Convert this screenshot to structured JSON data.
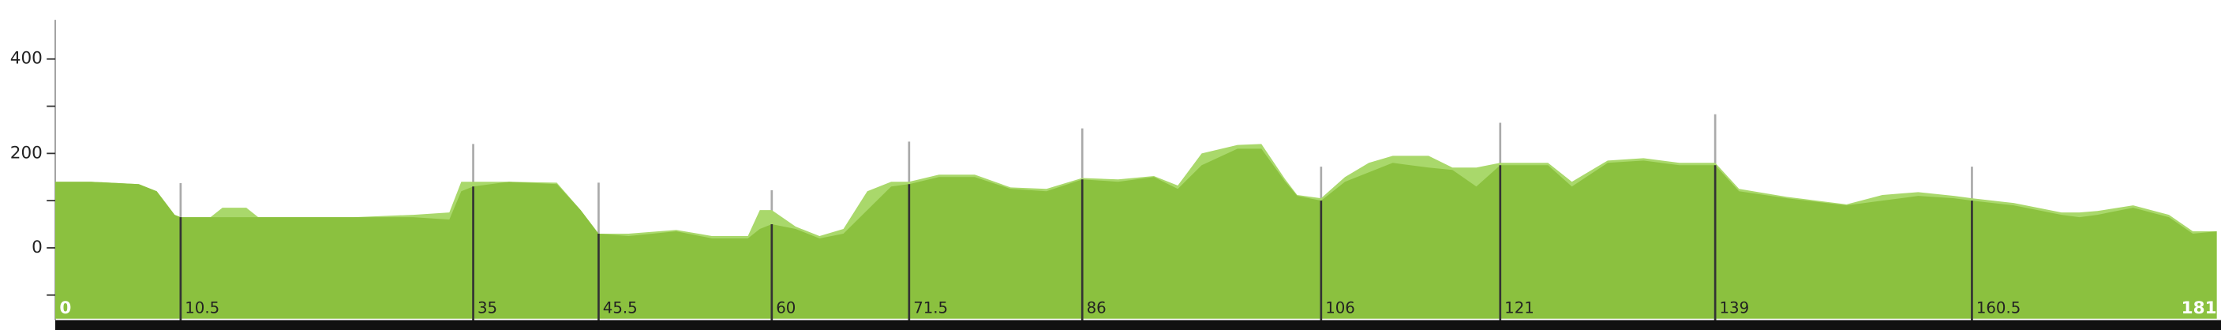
{
  "chart_data": {
    "type": "area",
    "xlim": [
      0,
      181
    ],
    "ylim": [
      -150,
      480
    ],
    "yticks": [
      0,
      200,
      400
    ],
    "yminor_ticks": [
      -100,
      100,
      300
    ],
    "x": [
      0,
      3,
      7,
      8.5,
      10,
      10.5,
      13,
      14,
      16,
      17,
      20,
      25,
      30,
      33,
      34,
      35,
      38,
      42,
      44,
      45.5,
      48,
      52,
      55,
      58,
      59,
      60,
      62,
      64,
      66,
      68,
      70,
      71.5,
      74,
      77,
      80,
      83,
      86,
      89,
      92,
      94,
      96,
      99,
      101,
      103,
      104,
      106,
      108,
      110,
      112,
      115,
      117,
      119,
      121,
      125,
      127,
      130,
      133,
      136,
      139,
      141,
      145,
      150,
      153,
      156,
      159,
      160.5,
      164,
      168,
      169.5,
      171,
      174,
      177,
      179,
      181
    ],
    "series": [
      {
        "color": "#a9d86b",
        "values": [
          140,
          140,
          135,
          120,
          70,
          65,
          65,
          85,
          85,
          65,
          65,
          65,
          70,
          75,
          140,
          140,
          140,
          138,
          80,
          30,
          30,
          38,
          25,
          25,
          80,
          80,
          45,
          25,
          40,
          120,
          140,
          140,
          155,
          155,
          128,
          125,
          148,
          145,
          152,
          132,
          200,
          218,
          220,
          145,
          112,
          105,
          150,
          180,
          195,
          195,
          170,
          170,
          180,
          180,
          140,
          185,
          190,
          180,
          180,
          125,
          108,
          92,
          112,
          118,
          110,
          105,
          95,
          75,
          75,
          78,
          90,
          70,
          35,
          35
        ]
      },
      {
        "color": "#8bc13f",
        "values": [
          140,
          140,
          135,
          120,
          70,
          65,
          65,
          65,
          65,
          65,
          65,
          65,
          65,
          60,
          120,
          130,
          140,
          135,
          80,
          30,
          25,
          35,
          20,
          20,
          40,
          50,
          40,
          20,
          30,
          80,
          130,
          135,
          150,
          150,
          125,
          120,
          145,
          140,
          150,
          125,
          175,
          210,
          210,
          140,
          110,
          100,
          140,
          160,
          180,
          170,
          165,
          130,
          175,
          175,
          130,
          180,
          185,
          175,
          175,
          120,
          105,
          90,
          100,
          110,
          105,
          100,
          90,
          70,
          65,
          70,
          85,
          65,
          30,
          35
        ]
      }
    ],
    "markers": [
      10.5,
      35,
      45.5,
      60,
      71.5,
      86,
      106,
      121,
      139,
      160.5
    ]
  }
}
